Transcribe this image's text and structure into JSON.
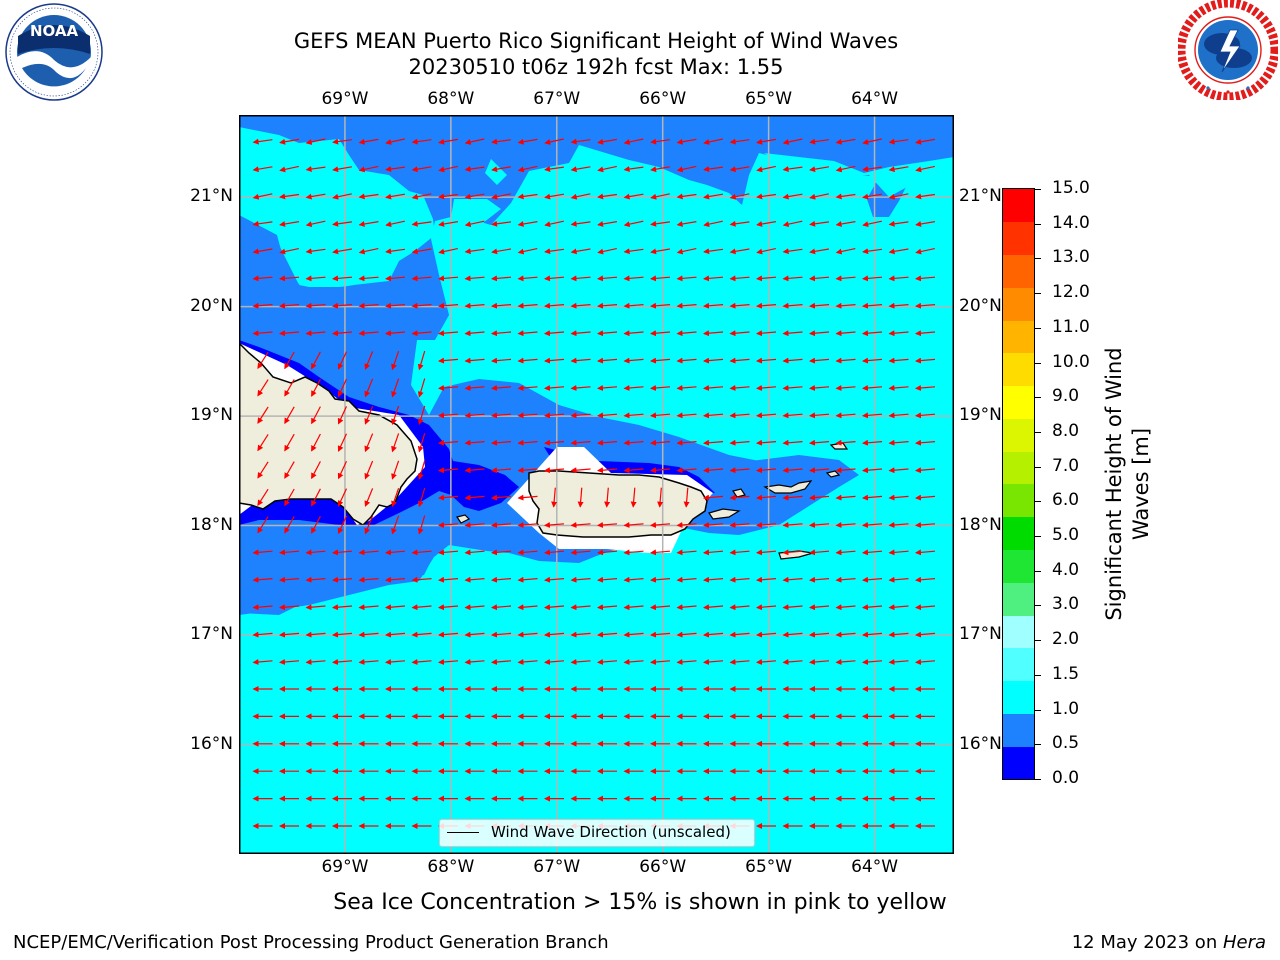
{
  "header": {
    "title_line1": "GEFS MEAN Puerto Rico Significant Height of Wind Waves",
    "title_line2": "20230510 t06z 192h fcst   Max: 1.55"
  },
  "logos": {
    "left": {
      "name": "noaa-logo",
      "text": "NOAA",
      "ring_text": "NATIONAL OCEANIC AND ATMOSPHERIC ADMINISTRATION · U.S. DEPARTMENT OF COMMERCE"
    },
    "right": {
      "name": "nws-logo",
      "ring_text": "NATIONAL WEATHER SERVICE"
    }
  },
  "map": {
    "lon_labels": [
      "69°W",
      "68°W",
      "67°W",
      "66°W",
      "65°W",
      "64°W"
    ],
    "lat_labels": [
      "21°N",
      "20°N",
      "19°N",
      "18°N",
      "17°N",
      "16°N"
    ],
    "lon_values": [
      -69,
      -68,
      -67,
      -66,
      -65,
      -64
    ],
    "lat_values": [
      21,
      20,
      19,
      18,
      17,
      16
    ],
    "extent": {
      "lon_min": -70.0,
      "lon_max": -63.25,
      "lat_min": 15.0,
      "lat_max": 21.75
    },
    "legend_label": "Wind Wave Direction (unscaled)",
    "colors": {
      "land": "#efeddc",
      "coast": "#000000",
      "grid": "#b4b4b4",
      "arrow": "#ff0000"
    }
  },
  "colorbar": {
    "label": "Significant Height of Wind Waves [m]",
    "label_line1": "Significant Height of Wind",
    "label_line2": "Waves [m]",
    "ticks": [
      "0.0",
      "0.5",
      "1.0",
      "1.5",
      "2.0",
      "3.0",
      "4.0",
      "5.0",
      "6.0",
      "7.0",
      "8.0",
      "9.0",
      "10.0",
      "11.0",
      "12.0",
      "13.0",
      "14.0",
      "15.0"
    ],
    "colors": [
      "#0000ff",
      "#1e82ff",
      "#00ffff",
      "#50ffff",
      "#a0ffff",
      "#50f080",
      "#1ee632",
      "#00dc00",
      "#78e600",
      "#b4f000",
      "#dcf500",
      "#ffff00",
      "#ffdc00",
      "#ffb400",
      "#ff8c00",
      "#ff6400",
      "#ff3200",
      "#ff0000"
    ]
  },
  "footer": {
    "sea_ice_note": "Sea Ice Concentration > 15% is shown in pink to yellow",
    "branch": "NCEP/EMC/Verification Post Processing Product Generation Branch",
    "date_prefix": "12 May 2023 on ",
    "date_machine": "Hera"
  }
}
